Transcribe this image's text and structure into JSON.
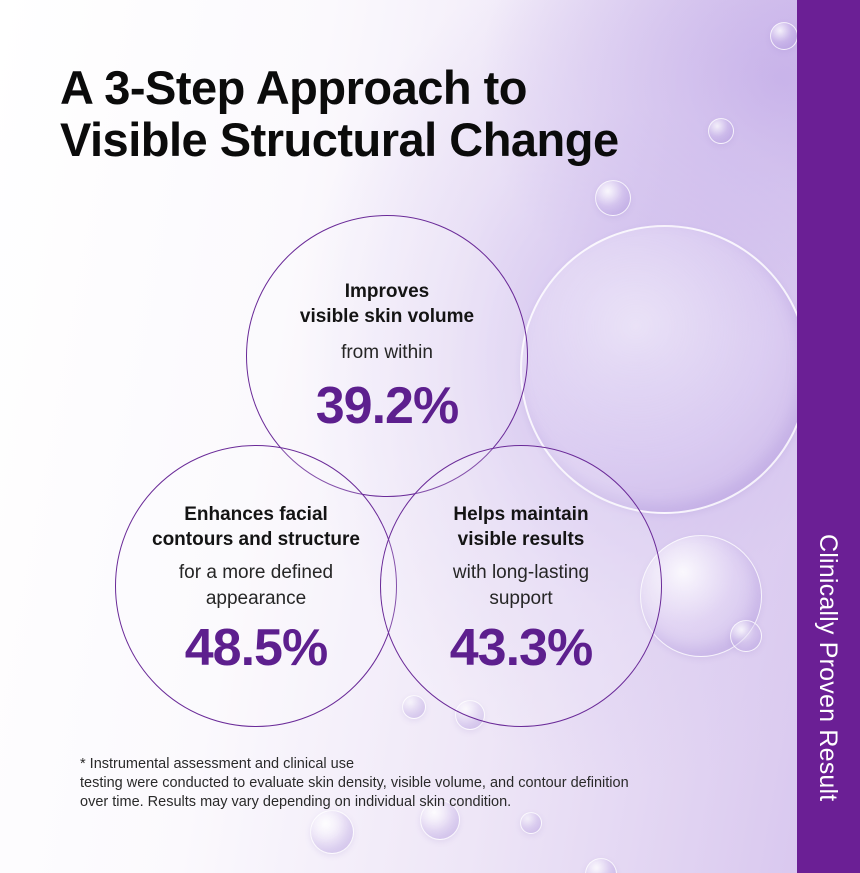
{
  "title": {
    "line1": "A 3-Step Approach to",
    "line2": "Visible Structural Change"
  },
  "steps": [
    {
      "heading": [
        "Improves",
        "visible skin volume"
      ],
      "subtext": [
        "from within"
      ],
      "value": "39.2%"
    },
    {
      "heading": [
        "Enhances facial",
        "contours and structure"
      ],
      "subtext": [
        "for a more defined",
        "appearance"
      ],
      "value": "48.5%"
    },
    {
      "heading": [
        "Helps maintain",
        "visible results"
      ],
      "subtext": [
        "with long-lasting",
        "support"
      ],
      "value": "43.3%"
    }
  ],
  "footnote": [
    "* Instrumental assessment and clinical use",
    "testing were conducted to evaluate skin density, visible volume, and contour definition",
    "over time. Results may vary depending on individual skin condition."
  ],
  "sidebar": {
    "label": "Clinically Proven Result"
  },
  "colors": {
    "accent": "#5d1f8e",
    "sidebar": "#6b1f95",
    "circle_border": "#6a2a98"
  }
}
